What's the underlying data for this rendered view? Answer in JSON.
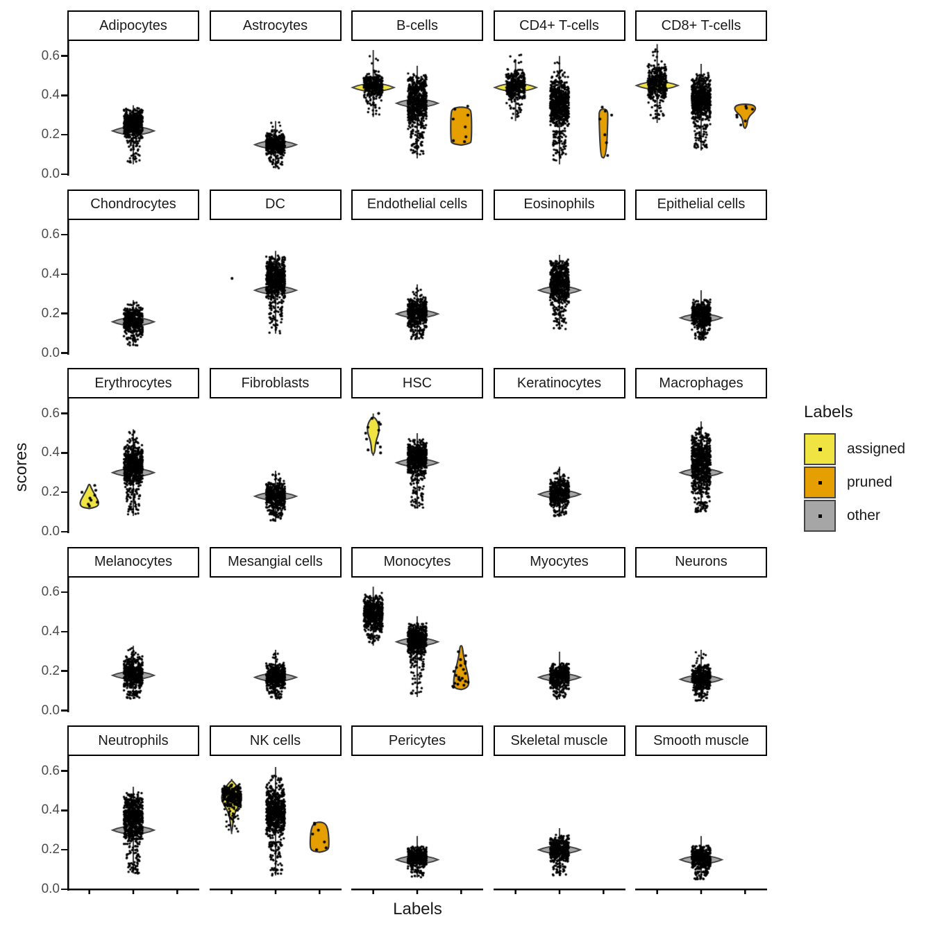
{
  "figure": {
    "ylabel": "scores",
    "xlabel": "Labels"
  },
  "legend": {
    "title": "Labels",
    "entries": [
      {
        "label": "assigned",
        "color": "#F0E442"
      },
      {
        "label": "pruned",
        "color": "#E69F00"
      },
      {
        "label": "other",
        "color": "#A6A6A6"
      }
    ]
  },
  "chart_data": {
    "type": "violin",
    "ylabel": "scores",
    "xlabel": "Labels",
    "y_ticks": [
      0.0,
      0.2,
      0.4,
      0.6
    ],
    "ylim": [
      0,
      0.66
    ],
    "x_categories": [
      "assigned",
      "other",
      "pruned"
    ],
    "colors": {
      "assigned": "#F0E442",
      "pruned": "#E69F00",
      "other": "#A6A6A6",
      "point": "#000000",
      "violin_edge": "#3a3a3a",
      "axis": "#000000",
      "tick_text": "#4d4d4d"
    },
    "facets": [
      {
        "title": "Adipocytes",
        "groups": [
          {
            "cat": "other",
            "n": 520,
            "band": [
              0.17,
              0.34
            ],
            "mode": 0.22,
            "whisker": [
              0.05,
              0.35
            ],
            "tail": [
              0.06,
              0.09
            ]
          }
        ]
      },
      {
        "title": "Astrocytes",
        "groups": [
          {
            "cat": "other",
            "n": 430,
            "band": [
              0.09,
              0.21
            ],
            "mode": 0.15,
            "whisker": [
              0.03,
              0.27
            ],
            "tail": [
              0.03,
              0.08
            ],
            "top": [
              0.27,
              0.03
            ]
          }
        ]
      },
      {
        "title": "B-cells",
        "groups": [
          {
            "cat": "assigned",
            "n": 340,
            "band": [
              0.37,
              0.52
            ],
            "mode": 0.44,
            "whisker": [
              0.29,
              0.63
            ],
            "tail": [
              0.3,
              0.06
            ],
            "top": [
              0.62,
              0.02
            ],
            "saucer": true
          },
          {
            "cat": "other",
            "n": 640,
            "band": [
              0.22,
              0.52
            ],
            "mode": 0.36,
            "whisker": [
              0.08,
              0.55
            ],
            "tail": [
              0.09,
              0.1
            ]
          },
          {
            "cat": "pruned",
            "shape": [
              [
                0.155,
                0.42
              ],
              [
                0.17,
                0.5
              ],
              [
                0.31,
                0.5
              ],
              [
                0.335,
                0.4
              ]
            ],
            "pts": [
              0.345,
              0.3,
              0.33,
              0.24,
              0.19,
              0.17,
              0.165,
              0.28
            ]
          }
        ]
      },
      {
        "title": "CD4+ T-cells",
        "groups": [
          {
            "cat": "assigned",
            "n": 360,
            "band": [
              0.36,
              0.54
            ],
            "mode": 0.44,
            "whisker": [
              0.27,
              0.58
            ],
            "tail": [
              0.28,
              0.06
            ],
            "top": [
              0.64,
              0.02
            ],
            "saucer": true
          },
          {
            "cat": "other",
            "n": 700,
            "band": [
              0.22,
              0.5
            ],
            "mode": 0.4,
            "whisker": [
              0.05,
              0.6
            ],
            "tail": [
              0.07,
              0.11
            ],
            "top": [
              0.58,
              0.02
            ],
            "saucer_hw": 12
          },
          {
            "cat": "pruned",
            "shape": [
              [
                0.09,
                0.14
              ],
              [
                0.3,
                0.22
              ],
              [
                0.325,
                0.18
              ]
            ],
            "pts": [
              0.32,
              0.3,
              0.28,
              0.2,
              0.16,
              0.095,
              0.34
            ]
          }
        ]
      },
      {
        "title": "CD8+ T-cells",
        "groups": [
          {
            "cat": "assigned",
            "n": 380,
            "band": [
              0.35,
              0.57
            ],
            "mode": 0.45,
            "whisker": [
              0.26,
              0.66
            ],
            "tail": [
              0.28,
              0.06
            ],
            "top": [
              0.65,
              0.02
            ],
            "saucer": true
          },
          {
            "cat": "other",
            "n": 660,
            "band": [
              0.25,
              0.52
            ],
            "mode": 0.42,
            "whisker": [
              0.12,
              0.56
            ],
            "tail": [
              0.13,
              0.1
            ],
            "saucer_hw": 12
          },
          {
            "cat": "pruned",
            "shape": [
              [
                0.24,
                0.08
              ],
              [
                0.29,
                0.14
              ],
              [
                0.325,
                0.52
              ],
              [
                0.35,
                0.46
              ]
            ],
            "pts": [
              0.345,
              0.335,
              0.33,
              0.3,
              0.29,
              0.27,
              0.25
            ]
          }
        ]
      },
      {
        "title": "Chondrocytes",
        "groups": [
          {
            "cat": "other",
            "n": 440,
            "band": [
              0.08,
              0.24
            ],
            "mode": 0.16,
            "whisker": [
              0.04,
              0.27
            ],
            "tail": [
              0.04,
              0.06
            ],
            "top": [
              0.26,
              0.02
            ]
          }
        ]
      },
      {
        "title": "DC",
        "groups": [
          {
            "cat": "assigned",
            "pts": [
              0.38
            ]
          },
          {
            "cat": "other",
            "n": 650,
            "band": [
              0.26,
              0.5
            ],
            "mode": 0.32,
            "whisker": [
              0.1,
              0.52
            ],
            "tail": [
              0.1,
              0.1
            ]
          }
        ]
      },
      {
        "title": "Endothelial cells",
        "groups": [
          {
            "cat": "other",
            "n": 480,
            "band": [
              0.12,
              0.29
            ],
            "mode": 0.2,
            "whisker": [
              0.07,
              0.35
            ],
            "tail": [
              0.07,
              0.08
            ],
            "top": [
              0.33,
              0.02
            ]
          }
        ]
      },
      {
        "title": "Eosinophils",
        "groups": [
          {
            "cat": "other",
            "n": 620,
            "band": [
              0.24,
              0.48
            ],
            "mode": 0.32,
            "whisker": [
              0.12,
              0.5
            ],
            "tail": [
              0.12,
              0.1
            ]
          }
        ]
      },
      {
        "title": "Epithelial cells",
        "groups": [
          {
            "cat": "other",
            "n": 470,
            "band": [
              0.11,
              0.28
            ],
            "mode": 0.18,
            "whisker": [
              0.07,
              0.32
            ],
            "tail": [
              0.07,
              0.08
            ]
          }
        ]
      },
      {
        "title": "Erythrocytes",
        "groups": [
          {
            "cat": "assigned",
            "shape": [
              [
                0.125,
                0.4
              ],
              [
                0.15,
                0.46
              ],
              [
                0.185,
                0.28
              ],
              [
                0.22,
                0.1
              ],
              [
                0.235,
                0.05
              ]
            ],
            "pts": [
              0.235,
              0.21,
              0.2,
              0.185,
              0.17,
              0.16,
              0.15,
              0.14,
              0.13
            ]
          },
          {
            "cat": "other",
            "n": 650,
            "band": [
              0.22,
              0.45
            ],
            "mode": 0.3,
            "whisker": [
              0.08,
              0.52
            ],
            "tail": [
              0.08,
              0.11
            ],
            "top": [
              0.51,
              0.03
            ]
          }
        ]
      },
      {
        "title": "Fibroblasts",
        "groups": [
          {
            "cat": "other",
            "n": 480,
            "band": [
              0.1,
              0.26
            ],
            "mode": 0.18,
            "whisker": [
              0.05,
              0.31
            ],
            "tail": [
              0.05,
              0.08
            ],
            "top": [
              0.3,
              0.02
            ]
          }
        ]
      },
      {
        "title": "HSC",
        "groups": [
          {
            "cat": "assigned",
            "shape": [
              [
                0.4,
                0.07
              ],
              [
                0.44,
                0.1
              ],
              [
                0.47,
                0.16
              ],
              [
                0.505,
                0.28
              ],
              [
                0.545,
                0.27
              ],
              [
                0.575,
                0.11
              ]
            ],
            "whisker": [
              0.385,
              0.6
            ],
            "pts": [
              0.6,
              0.575,
              0.555,
              0.545,
              0.53,
              0.515,
              0.5,
              0.47,
              0.45,
              0.43,
              0.415,
              0.4
            ]
          },
          {
            "cat": "other",
            "n": 620,
            "band": [
              0.27,
              0.48
            ],
            "mode": 0.35,
            "whisker": [
              0.12,
              0.5
            ],
            "tail": [
              0.12,
              0.1
            ]
          }
        ]
      },
      {
        "title": "Keratinocytes",
        "groups": [
          {
            "cat": "other",
            "n": 430,
            "band": [
              0.11,
              0.28
            ],
            "mode": 0.19,
            "whisker": [
              0.08,
              0.33
            ],
            "tail": [
              0.08,
              0.07
            ],
            "top": [
              0.32,
              0.02
            ]
          }
        ]
      },
      {
        "title": "Macrophages",
        "groups": [
          {
            "cat": "other",
            "n": 700,
            "band": [
              0.15,
              0.54
            ],
            "mode": 0.3,
            "whisker": [
              0.1,
              0.56
            ],
            "tail": [
              0.1,
              0.06
            ]
          }
        ]
      },
      {
        "title": "Melanocytes",
        "groups": [
          {
            "cat": "other",
            "n": 500,
            "band": [
              0.1,
              0.28
            ],
            "mode": 0.18,
            "whisker": [
              0.06,
              0.33
            ],
            "tail": [
              0.06,
              0.08
            ],
            "top": [
              0.32,
              0.02
            ]
          }
        ]
      },
      {
        "title": "Mesangial cells",
        "groups": [
          {
            "cat": "other",
            "n": 470,
            "band": [
              0.1,
              0.25
            ],
            "mode": 0.17,
            "whisker": [
              0.06,
              0.31
            ],
            "tail": [
              0.06,
              0.07
            ],
            "top": [
              0.3,
              0.02
            ]
          }
        ]
      },
      {
        "title": "Monocytes",
        "groups": [
          {
            "cat": "assigned",
            "n": 540,
            "band": [
              0.39,
              0.6
            ],
            "mode": 0.5,
            "whisker": [
              0.33,
              0.63
            ],
            "tail": [
              0.34,
              0.06
            ],
            "saucer_hw": 12
          },
          {
            "cat": "other",
            "n": 560,
            "band": [
              0.27,
              0.45
            ],
            "mode": 0.35,
            "whisker": [
              0.07,
              0.48
            ],
            "tail": [
              0.08,
              0.12
            ]
          },
          {
            "cat": "pruned",
            "shape": [
              [
                0.115,
                0.34
              ],
              [
                0.16,
                0.37
              ],
              [
                0.22,
                0.24
              ],
              [
                0.28,
                0.11
              ],
              [
                0.325,
                0.06
              ]
            ],
            "pts": [
              0.3,
              0.28,
              0.26,
              0.25,
              0.24,
              0.23,
              0.22,
              0.21,
              0.2,
              0.19,
              0.18,
              0.17,
              0.165,
              0.16,
              0.155,
              0.15,
              0.145,
              0.14,
              0.135,
              0.13,
              0.125,
              0.12
            ]
          }
        ]
      },
      {
        "title": "Myocytes",
        "groups": [
          {
            "cat": "other",
            "n": 430,
            "band": [
              0.1,
              0.25
            ],
            "mode": 0.17,
            "whisker": [
              0.06,
              0.3
            ],
            "tail": [
              0.06,
              0.07
            ]
          }
        ]
      },
      {
        "title": "Neurons",
        "groups": [
          {
            "cat": "other",
            "n": 430,
            "band": [
              0.09,
              0.24
            ],
            "mode": 0.16,
            "whisker": [
              0.05,
              0.31
            ],
            "tail": [
              0.05,
              0.07
            ],
            "top": [
              0.3,
              0.02
            ]
          }
        ]
      },
      {
        "title": "Neutrophils",
        "groups": [
          {
            "cat": "other",
            "n": 660,
            "band": [
              0.22,
              0.5
            ],
            "mode": 0.3,
            "whisker": [
              0.08,
              0.52
            ],
            "tail": [
              0.08,
              0.1
            ]
          }
        ]
      },
      {
        "title": "NK cells",
        "groups": [
          {
            "cat": "assigned",
            "n": 280,
            "band": [
              0.4,
              0.54
            ],
            "mode": 0.48,
            "whisker": [
              0.28,
              0.56
            ],
            "tail": [
              0.29,
              0.1
            ],
            "shape": [
              [
                0.3,
                0.03
              ],
              [
                0.38,
                0.1
              ],
              [
                0.44,
                0.44
              ],
              [
                0.475,
                0.5
              ],
              [
                0.52,
                0.28
              ],
              [
                0.545,
                0.08
              ]
            ]
          },
          {
            "cat": "other",
            "n": 620,
            "band": [
              0.24,
              0.55
            ],
            "mode": 0.38,
            "whisker": [
              0.07,
              0.62
            ],
            "tail": [
              0.07,
              0.12
            ],
            "top": [
              0.61,
              0.02
            ],
            "saucer_hw": 12
          },
          {
            "cat": "pruned",
            "shape": [
              [
                0.195,
                0.4
              ],
              [
                0.225,
                0.46
              ],
              [
                0.3,
                0.42
              ],
              [
                0.335,
                0.28
              ]
            ],
            "pts": [
              0.335,
              0.33,
              0.3,
              0.28,
              0.24,
              0.21,
              0.2
            ]
          }
        ]
      },
      {
        "title": "Pericytes",
        "groups": [
          {
            "cat": "other",
            "n": 430,
            "band": [
              0.1,
              0.22
            ],
            "mode": 0.15,
            "whisker": [
              0.06,
              0.27
            ],
            "tail": [
              0.06,
              0.07
            ]
          }
        ]
      },
      {
        "title": "Skeletal muscle",
        "groups": [
          {
            "cat": "other",
            "n": 400,
            "band": [
              0.12,
              0.28
            ],
            "mode": 0.2,
            "whisker": [
              0.07,
              0.31
            ],
            "tail": [
              0.07,
              0.08
            ]
          }
        ]
      },
      {
        "title": "Smooth muscle",
        "groups": [
          {
            "cat": "other",
            "n": 440,
            "band": [
              0.09,
              0.23
            ],
            "mode": 0.15,
            "whisker": [
              0.05,
              0.27
            ],
            "tail": [
              0.05,
              0.08
            ]
          }
        ]
      }
    ]
  }
}
